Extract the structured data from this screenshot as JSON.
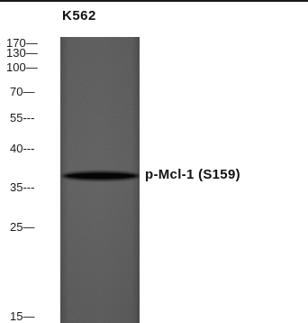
{
  "lane_label": "K562",
  "band_label": "p-Mcl-1 (S159)",
  "markers": [
    {
      "id": "m170",
      "text": "170—"
    },
    {
      "id": "m130",
      "text": "130—"
    },
    {
      "id": "m100",
      "text": "100—"
    },
    {
      "id": "m70",
      "text": "70—"
    },
    {
      "id": "m55",
      "text": "55---"
    },
    {
      "id": "m40",
      "text": "40---"
    },
    {
      "id": "m35",
      "text": "35---"
    },
    {
      "id": "m25",
      "text": "25—"
    },
    {
      "id": "m15",
      "text": "15—"
    }
  ],
  "colors": {
    "lane_background": "#6a6a6a",
    "band": "#141414",
    "text": "#111111"
  }
}
